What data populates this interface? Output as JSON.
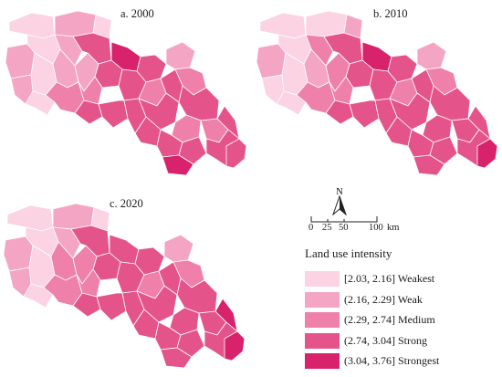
{
  "panels": [
    {
      "title": "a. 2000"
    },
    {
      "title": "b. 2010"
    },
    {
      "title": "c. 2020"
    }
  ],
  "north_arrow": {
    "label": "N",
    "icon": "north-arrow-icon"
  },
  "scale_bar": {
    "ticks": [
      "0",
      "25",
      "50",
      "100"
    ],
    "unit": "km"
  },
  "legend": {
    "title": "Land use intensity",
    "classes": [
      {
        "range": "[2.03, 2.16]",
        "name": "Weakest",
        "color": "#fbd3e3"
      },
      {
        "range": "(2.16, 2.29]",
        "name": "Weak",
        "color": "#f5a5c4"
      },
      {
        "range": "(2.29, 2.74]",
        "name": "Medium",
        "color": "#ee80aa"
      },
      {
        "range": "(2.74, 3.04]",
        "name": "Strong",
        "color": "#e4548b"
      },
      {
        "range": "(3.04, 3.76]",
        "name": "Strongest",
        "color": "#d8226b"
      }
    ]
  },
  "maps": [
    {
      "classes": [
        0,
        1,
        0,
        1,
        1,
        0,
        0,
        0,
        1,
        1,
        2,
        4,
        3,
        3,
        1,
        2,
        3,
        1,
        2,
        3,
        2,
        3,
        3,
        3,
        3,
        3,
        3,
        3,
        2,
        3,
        3,
        2,
        3,
        3,
        4,
        3
      ]
    },
    {
      "classes": [
        0,
        0,
        1,
        1,
        0,
        0,
        0,
        0,
        2,
        1,
        2,
        4,
        3,
        3,
        1,
        2,
        3,
        2,
        2,
        3,
        2,
        3,
        3,
        3,
        3,
        3,
        3,
        3,
        3,
        3,
        3,
        3,
        3,
        3,
        3,
        4
      ]
    },
    {
      "classes": [
        0,
        1,
        0,
        1,
        1,
        0,
        0,
        0,
        1,
        2,
        2,
        3,
        3,
        3,
        1,
        2,
        3,
        2,
        2,
        3,
        2,
        3,
        3,
        3,
        3,
        3,
        3,
        3,
        3,
        3,
        3,
        3,
        4,
        3,
        3,
        4
      ]
    }
  ]
}
